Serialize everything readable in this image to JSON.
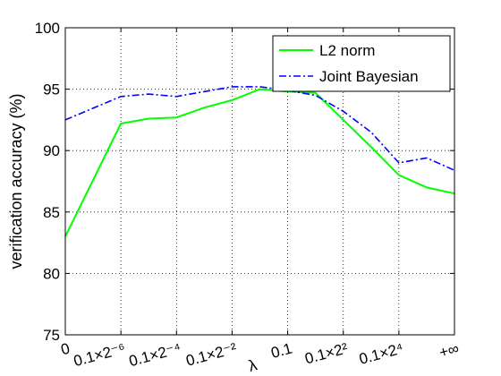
{
  "chart_data": {
    "type": "line",
    "title": "",
    "xlabel": "λ",
    "ylabel": "verification accuracy (%)",
    "ylim": [
      75,
      100
    ],
    "yticks": [
      "75",
      "80",
      "85",
      "90",
      "95",
      "100"
    ],
    "xticks": [
      "0",
      "0.1×2⁻⁶",
      "0.1×2⁻⁴",
      "0.1×2⁻²",
      "0.1",
      "0.1×2²",
      "0.1×2⁴",
      "+∞"
    ],
    "x": [
      0,
      1,
      1.5,
      2,
      2.5,
      3,
      3.5,
      4,
      4.5,
      5,
      5.5,
      6,
      6.5,
      7
    ],
    "grid": true,
    "legend_position": "top-right",
    "series": [
      {
        "name": "L2 norm",
        "color": "#00ff00",
        "style": "solid",
        "values": [
          83.0,
          92.2,
          92.6,
          92.7,
          93.5,
          94.1,
          95.0,
          94.8,
          94.7,
          92.5,
          90.3,
          88.0,
          87.0,
          86.5
        ]
      },
      {
        "name": "Joint Bayesian",
        "color": "#0000ff",
        "style": "dash-dot",
        "values": [
          92.5,
          94.4,
          94.6,
          94.4,
          94.8,
          95.2,
          95.2,
          94.9,
          94.5,
          93.2,
          91.5,
          89.0,
          89.4,
          88.4
        ]
      }
    ]
  }
}
